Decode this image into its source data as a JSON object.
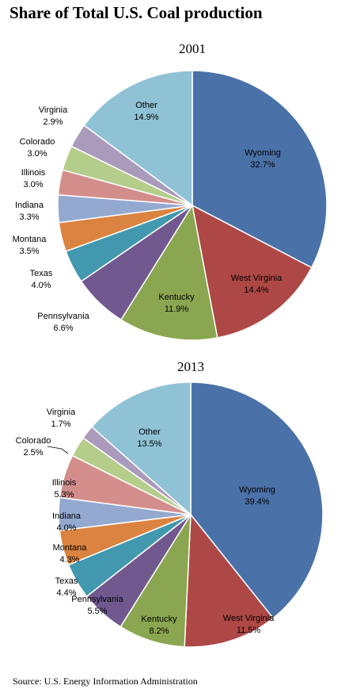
{
  "page": {
    "title": "Share of Total U.S. Coal production",
    "source": "Source: U.S. Energy Information Administration"
  },
  "colors": {
    "Wyoming": "#4a71a8",
    "West Virginia": "#ad4846",
    "Kentucky": "#8ba650",
    "Pennsylvania": "#71588f",
    "Texas": "#4298ae",
    "Montana": "#db8340",
    "Indiana": "#94a9d0",
    "Illinois": "#d38e8c",
    "Colorado": "#b5cd8b",
    "Virginia": "#aa9bbd",
    "Other": "#90c2d6"
  },
  "chart_data": [
    {
      "type": "pie",
      "title": "2001",
      "categories": [
        "Wyoming",
        "West Virginia",
        "Kentucky",
        "Pennsylvania",
        "Texas",
        "Montana",
        "Indiana",
        "Illinois",
        "Colorado",
        "Virginia",
        "Other"
      ],
      "values": [
        32.7,
        14.4,
        11.9,
        6.6,
        4.0,
        3.5,
        3.3,
        3.0,
        3.0,
        2.9,
        14.9
      ],
      "value_labels": [
        "32.7%",
        "14.4%",
        "11.9%",
        "6.6%",
        "4.0%",
        "3.5%",
        "3.3%",
        "3.0%",
        "3.0%",
        "2.9%",
        "14.9%"
      ]
    },
    {
      "type": "pie",
      "title": "2013",
      "categories": [
        "Wyoming",
        "West Virginia",
        "Kentucky",
        "Pennsylvania",
        "Texas",
        "Montana",
        "Indiana",
        "Illinois",
        "Colorado",
        "Virginia",
        "Other"
      ],
      "values": [
        39.4,
        11.5,
        8.2,
        5.5,
        4.4,
        4.3,
        4.0,
        5.3,
        2.5,
        1.7,
        13.5
      ],
      "value_labels": [
        "39.4%",
        "11.5%",
        "8.2%",
        "5.5%",
        "4.4%",
        "4.3%",
        "4.0%",
        "5.3%",
        "2.5%",
        "1.7%",
        "13.5%"
      ]
    }
  ]
}
